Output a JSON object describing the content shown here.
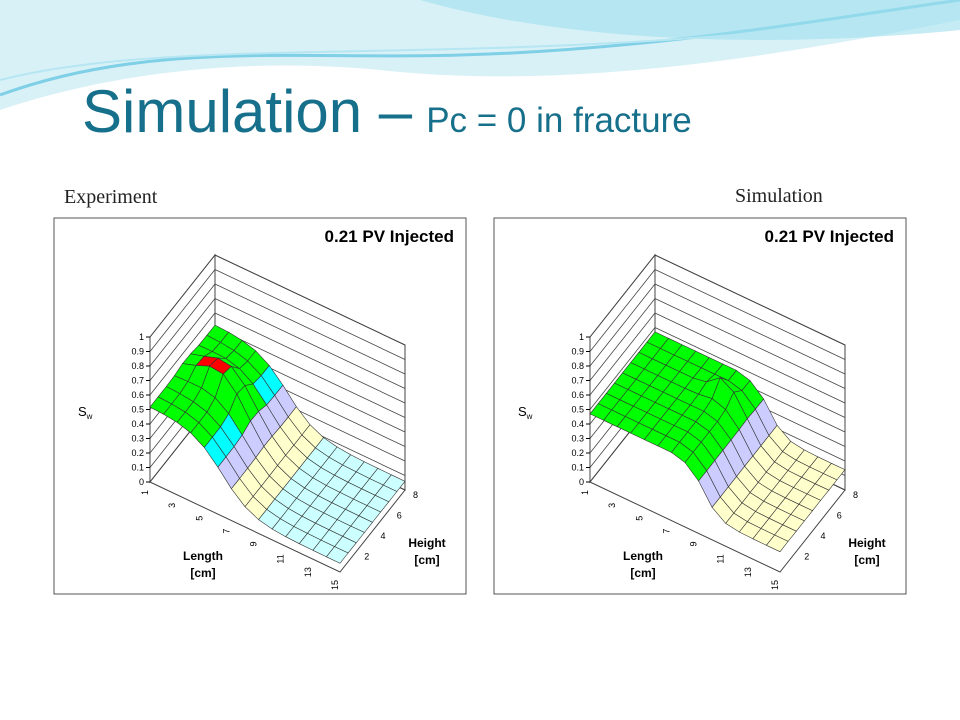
{
  "title": {
    "main": "Simulation –",
    "sub": "Pc = 0 in fracture"
  },
  "panels": [
    {
      "caption": "Experiment",
      "plot_title": "0.21 PV Injected",
      "z_label": "S",
      "z_sub": "w",
      "z_ticks": [
        "0",
        "0.1",
        "0.2",
        "0.3",
        "0.4",
        "0.5",
        "0.6",
        "0.7",
        "0.8",
        "0.9",
        "1"
      ],
      "x_label": [
        "Length",
        "[cm]"
      ],
      "x_ticks": [
        "1",
        "3",
        "5",
        "7",
        "9",
        "11",
        "13",
        "15"
      ],
      "y_label": [
        "Height",
        "[cm]"
      ],
      "y_ticks": [
        "2",
        "4",
        "6",
        "8"
      ]
    },
    {
      "caption": "Simulation",
      "plot_title": "0.21 PV Injected",
      "z_label": "S",
      "z_sub": "w",
      "z_ticks": [
        "0",
        "0.1",
        "0.2",
        "0.3",
        "0.4",
        "0.5",
        "0.6",
        "0.7",
        "0.8",
        "0.9",
        "1"
      ],
      "x_label": [
        "Length",
        "[cm]"
      ],
      "x_ticks": [
        "1",
        "3",
        "5",
        "7",
        "9",
        "11",
        "13",
        "15"
      ],
      "y_label": [
        "Height",
        "[cm]"
      ],
      "y_ticks": [
        "2",
        "4",
        "6",
        "8"
      ]
    }
  ]
}
